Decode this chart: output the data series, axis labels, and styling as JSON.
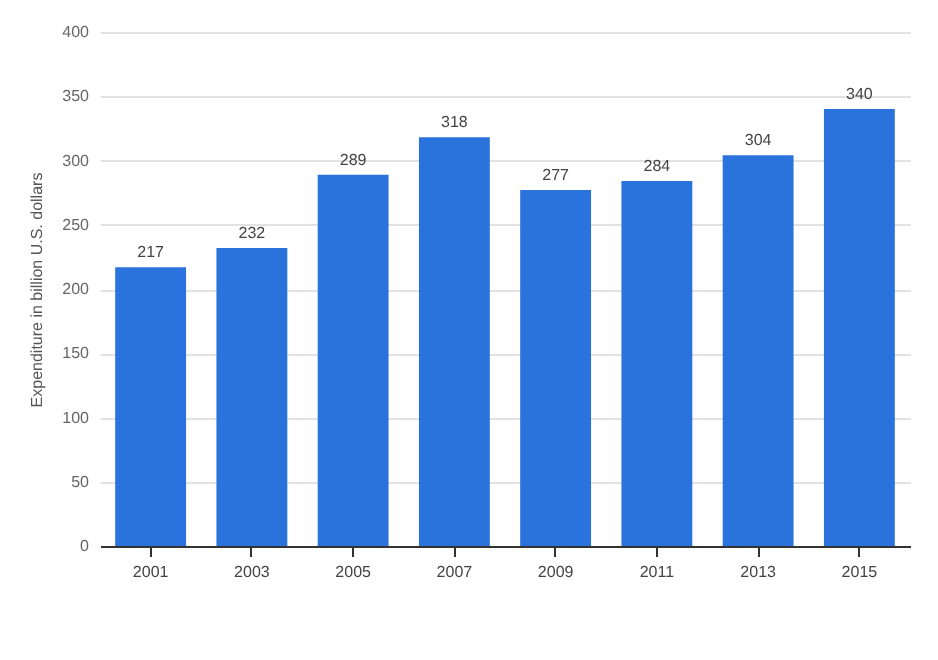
{
  "chart_data": {
    "type": "bar",
    "ylabel": "Expenditure in billion U.S. dollars",
    "categories": [
      "2001",
      "2003",
      "2005",
      "2007",
      "2009",
      "2011",
      "2013",
      "2015"
    ],
    "values": [
      217,
      232,
      289,
      318,
      277,
      284,
      304,
      340
    ],
    "color": "#2a72dc",
    "ylim": [
      0,
      400
    ],
    "yticks": [
      0,
      50,
      100,
      150,
      200,
      250,
      300,
      350,
      400
    ],
    "grid": "y",
    "data_labels": true
  }
}
